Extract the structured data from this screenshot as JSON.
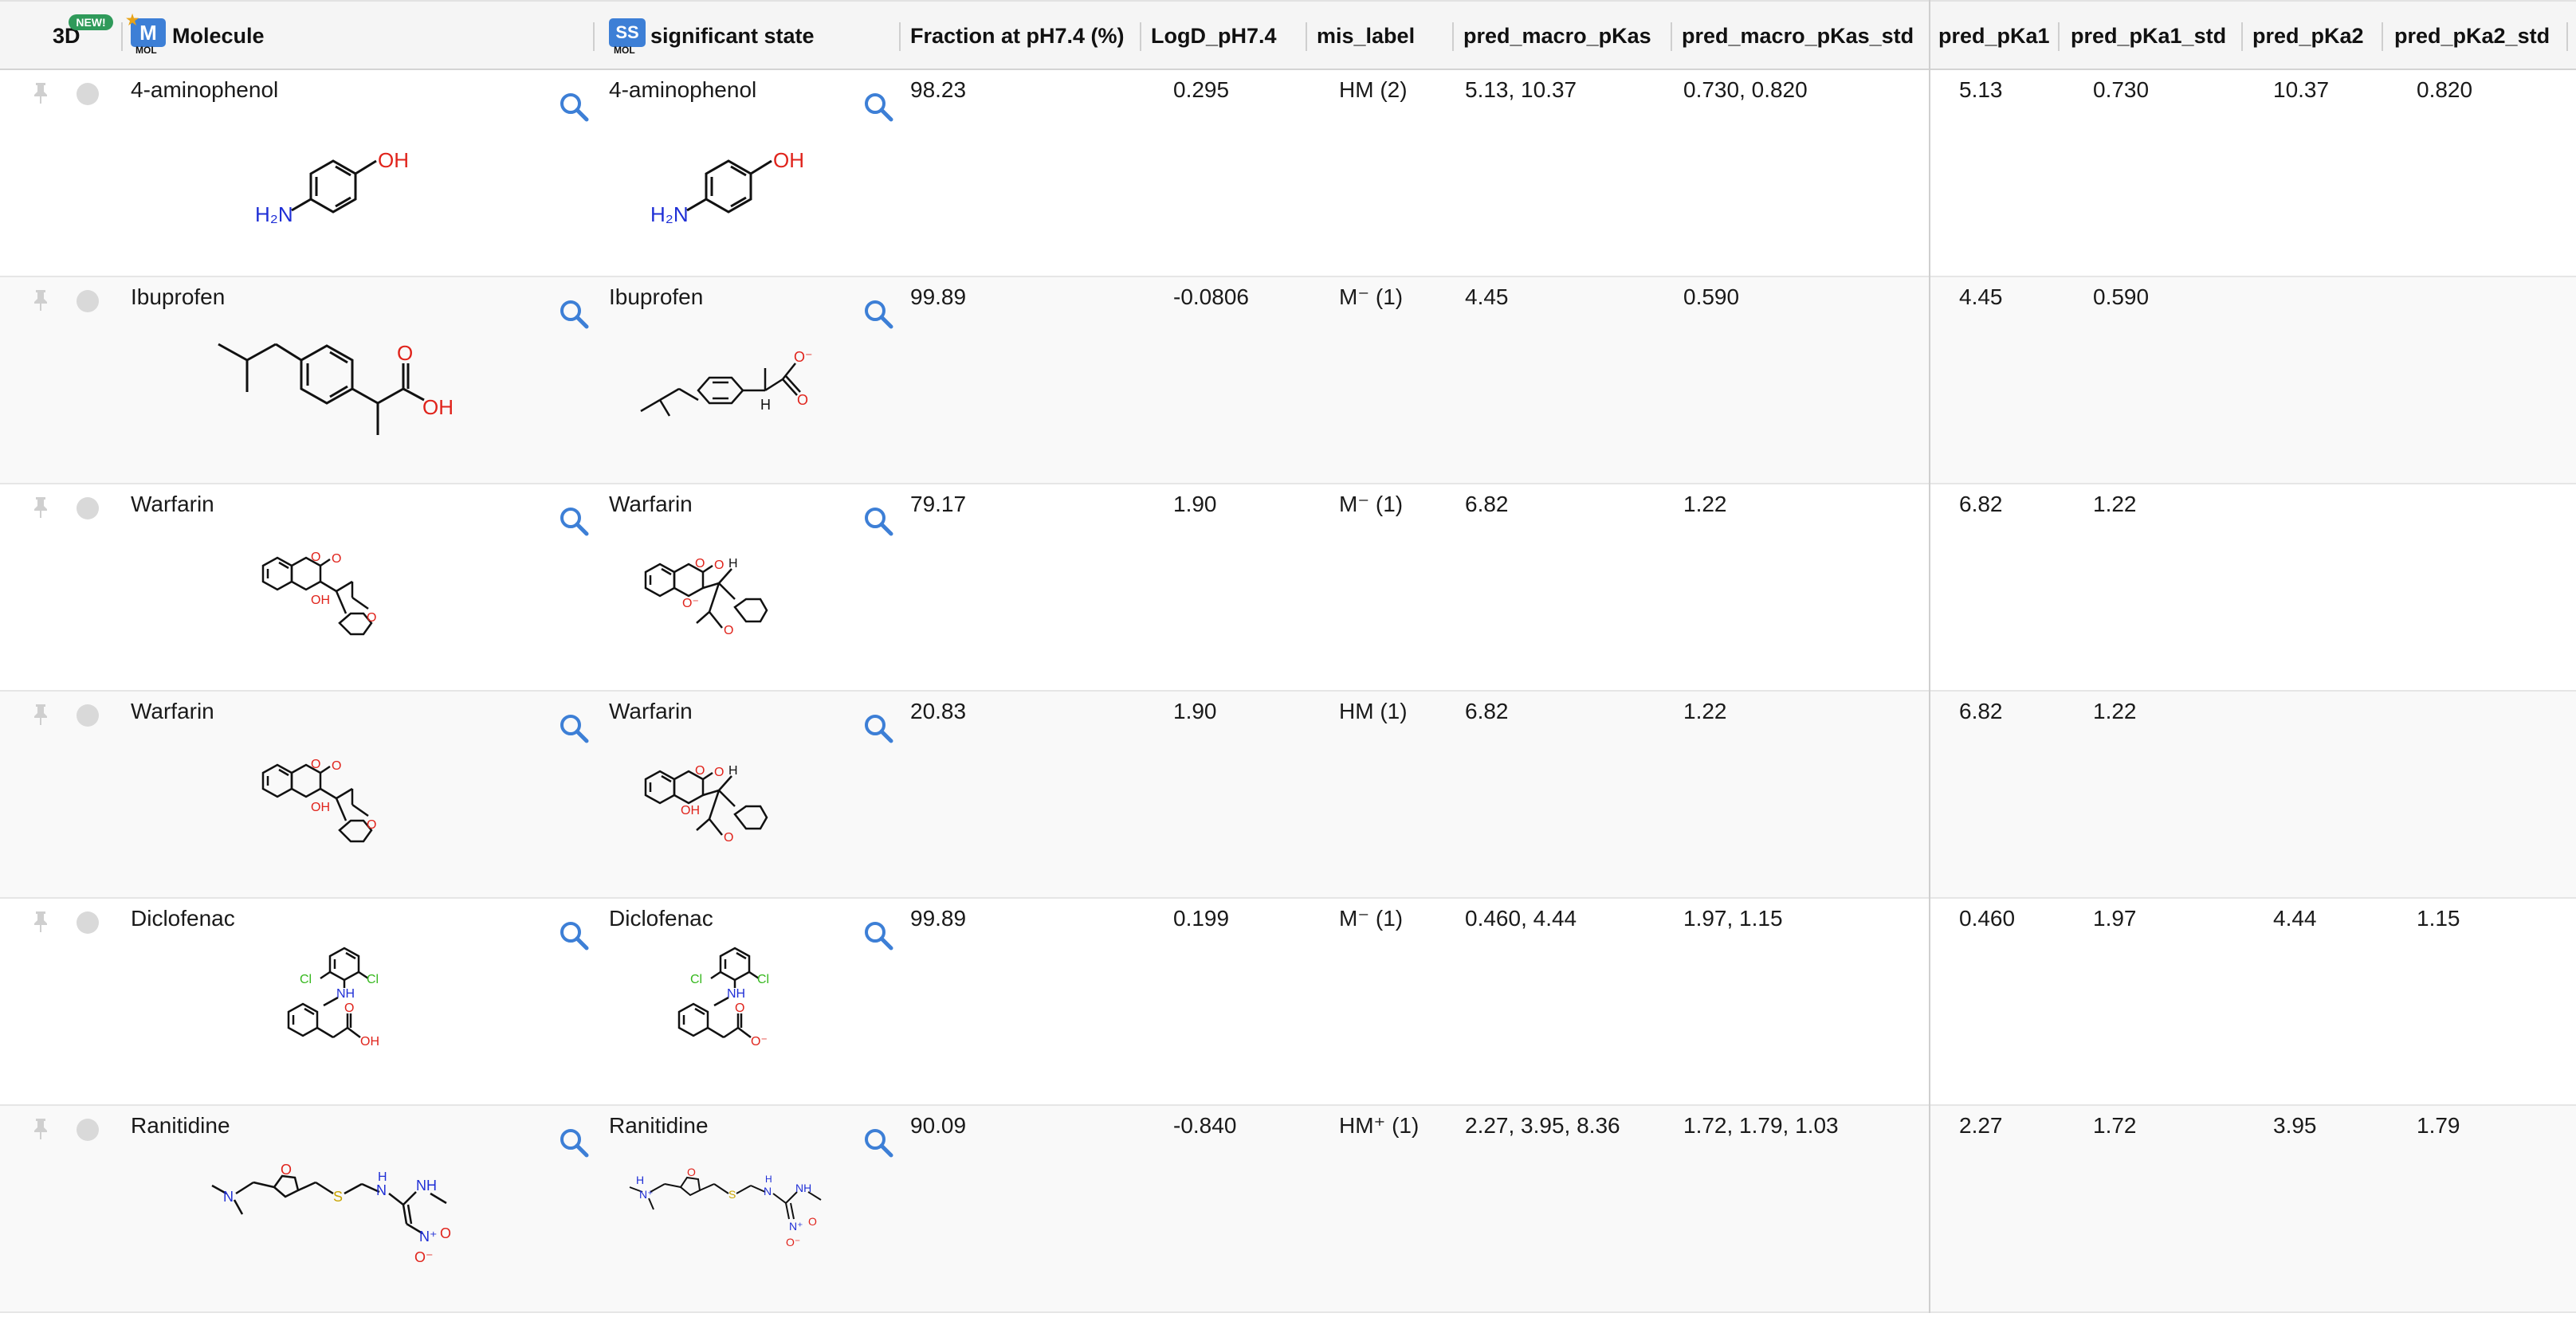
{
  "header": {
    "col_3d": "3D",
    "new_badge": "NEW!",
    "molecule_icon": "M",
    "molecule_icon_sub": "MOL",
    "molecule": "Molecule",
    "ss_icon": "SS",
    "ss_icon_sub": "MOL",
    "significant_state": "significant state",
    "fraction": "Fraction at pH7.4 (%)",
    "logd": "LogD_pH7.4",
    "mis_label": "mis_label",
    "pred_macro_pkas": "pred_macro_pKas",
    "pred_macro_pkas_std": "pred_macro_pKas_std",
    "pred_pka1": "pred_pKa1",
    "pred_pka1_std": "pred_pKa1_std",
    "pred_pka2": "pred_pKa2",
    "pred_pka2_std": "pred_pKa2_std"
  },
  "colors": {
    "accent": "#3d7fd6",
    "new_badge": "#2f9a5a",
    "oxygen": "#e0231b",
    "nitrogen": "#1f2fd6",
    "chlorine": "#35b81d",
    "sulfur": "#c9a400"
  },
  "rows": [
    {
      "molecule": "4-aminophenol",
      "ss": "4-aminophenol",
      "fraction": "98.23",
      "logd": "0.295",
      "mis": "HM (2)",
      "macro": "5.13, 10.37",
      "macro_std": "0.730, 0.820",
      "pka1": "5.13",
      "pka1_std": "0.730",
      "pka2": "10.37",
      "pka2_std": "0.820"
    },
    {
      "molecule": "Ibuprofen",
      "ss": "Ibuprofen",
      "fraction": "99.89",
      "logd": "-0.0806",
      "mis": "M⁻ (1)",
      "macro": "4.45",
      "macro_std": "0.590",
      "pka1": "4.45",
      "pka1_std": "0.590",
      "pka2": "",
      "pka2_std": ""
    },
    {
      "molecule": "Warfarin",
      "ss": "Warfarin",
      "fraction": "79.17",
      "logd": "1.90",
      "mis": "M⁻ (1)",
      "macro": "6.82",
      "macro_std": "1.22",
      "pka1": "6.82",
      "pka1_std": "1.22",
      "pka2": "",
      "pka2_std": ""
    },
    {
      "molecule": "Warfarin",
      "ss": "Warfarin",
      "fraction": "20.83",
      "logd": "1.90",
      "mis": "HM (1)",
      "macro": "6.82",
      "macro_std": "1.22",
      "pka1": "6.82",
      "pka1_std": "1.22",
      "pka2": "",
      "pka2_std": ""
    },
    {
      "molecule": "Diclofenac",
      "ss": "Diclofenac",
      "fraction": "99.89",
      "logd": "0.199",
      "mis": "M⁻ (1)",
      "macro": "0.460, 4.44",
      "macro_std": "1.97, 1.15",
      "pka1": "0.460",
      "pka1_std": "1.97",
      "pka2": "4.44",
      "pka2_std": "1.15"
    },
    {
      "molecule": "Ranitidine",
      "ss": "Ranitidine",
      "fraction": "90.09",
      "logd": "-0.840",
      "mis": "HM⁺ (1)",
      "macro": "2.27, 3.95, 8.36",
      "macro_std": "1.72, 1.79, 1.03",
      "pka1": "2.27",
      "pka1_std": "1.72",
      "pka2": "3.95",
      "pka2_std": "1.79"
    }
  ],
  "atom_labels": {
    "oh": "OH",
    "o": "O",
    "o_minus": "O⁻",
    "h2n": "H₂N",
    "h": "H",
    "nh": "NH",
    "n": "N",
    "cl": "Cl",
    "s": "S",
    "no2_n": "N⁺",
    "hn": "HN"
  }
}
